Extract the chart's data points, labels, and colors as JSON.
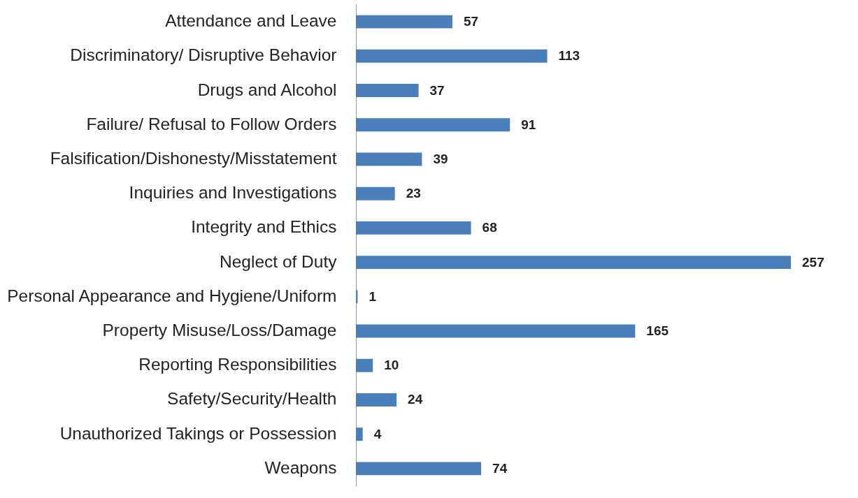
{
  "chart_data": {
    "type": "bar",
    "orientation": "horizontal",
    "categories": [
      "Attendance and Leave",
      "Discriminatory/ Disruptive Behavior",
      "Drugs and Alcohol",
      "Failure/ Refusal to Follow Orders",
      "Falsification/Dishonesty/Misstatement",
      "Inquiries and Investigations",
      "Integrity and Ethics",
      "Neglect of Duty",
      "Personal Appearance and Hygiene/Uniform",
      "Property Misuse/Loss/Damage",
      "Reporting Responsibilities",
      "Safety/Security/Health",
      "Unauthorized Takings or Possession",
      "Weapons"
    ],
    "values": [
      57,
      113,
      37,
      91,
      39,
      23,
      68,
      257,
      1,
      165,
      10,
      24,
      4,
      74
    ],
    "color": "#4a7ebb",
    "data_labels": true
  }
}
